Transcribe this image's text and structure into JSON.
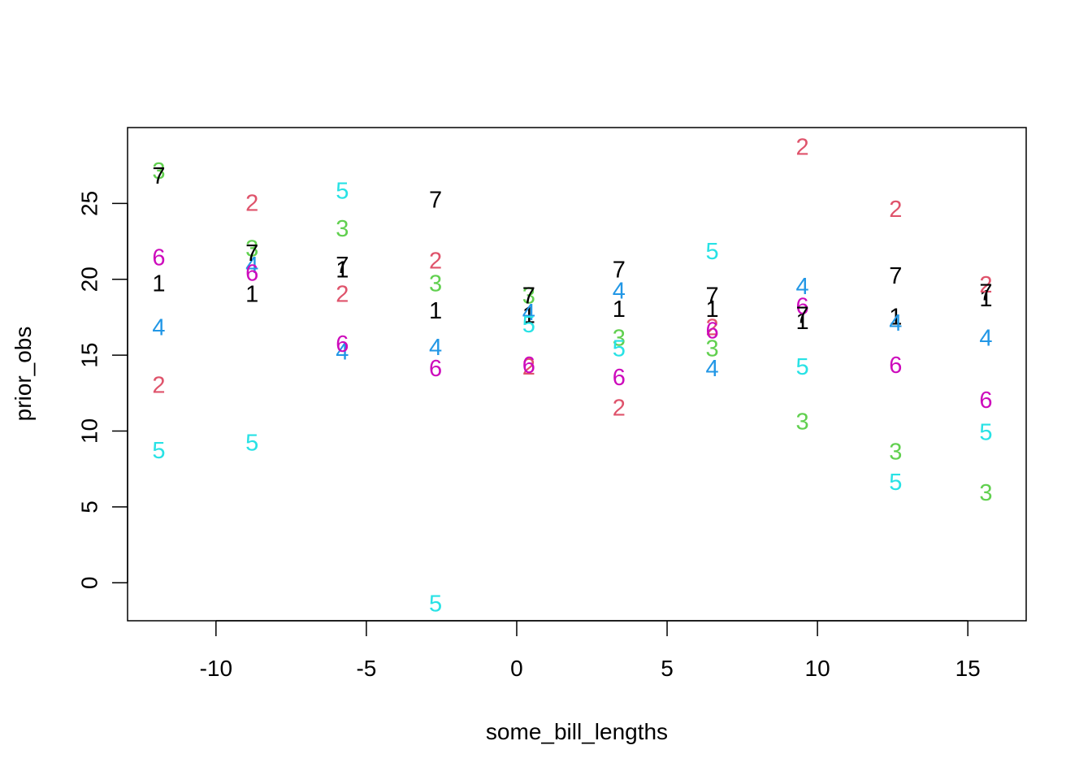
{
  "chart_data": {
    "type": "scatter",
    "title": "",
    "xlabel": "some_bill_lengths",
    "ylabel": "prior_obs",
    "xlim": [
      -12.94,
      16.94
    ],
    "ylim": [
      -2.5,
      30.0
    ],
    "xticks": [
      -10,
      -5,
      0,
      5,
      10,
      15
    ],
    "yticks": [
      0,
      5,
      10,
      15,
      20,
      25
    ],
    "x": [
      -11.9,
      -8.8,
      -5.8,
      -2.7,
      0.4,
      3.4,
      6.5,
      9.5,
      12.6,
      15.6
    ],
    "point_marker": "series index digit",
    "grid": false,
    "legend": "none",
    "series": [
      {
        "symbol": "1",
        "color": "#000000",
        "values": [
          19.7,
          19.0,
          20.6,
          17.9,
          17.6,
          18.0,
          18.0,
          17.2,
          17.5,
          18.7
        ]
      },
      {
        "symbol": "2",
        "color": "#DF536B",
        "values": [
          13.0,
          25.0,
          19.0,
          21.2,
          14.2,
          11.5,
          16.8,
          28.7,
          24.6,
          19.6
        ]
      },
      {
        "symbol": "3",
        "color": "#61D04F",
        "values": [
          27.1,
          22.0,
          23.3,
          19.7,
          18.9,
          16.1,
          15.4,
          10.6,
          8.6,
          5.9
        ]
      },
      {
        "symbol": "4",
        "color": "#2297E6",
        "values": [
          16.8,
          20.9,
          15.2,
          15.5,
          17.8,
          19.2,
          14.1,
          19.5,
          17.1,
          16.1
        ]
      },
      {
        "symbol": "5",
        "color": "#28E2E5",
        "values": [
          8.7,
          9.2,
          25.8,
          -1.4,
          17.0,
          15.4,
          21.8,
          14.2,
          6.6,
          9.9
        ]
      },
      {
        "symbol": "6",
        "color": "#CD0BBC",
        "values": [
          21.4,
          20.4,
          15.7,
          14.1,
          14.3,
          13.5,
          16.6,
          18.2,
          14.3,
          12.0
        ]
      },
      {
        "symbol": "7",
        "color": "#000000",
        "values": [
          26.8,
          21.7,
          20.9,
          25.2,
          18.9,
          20.6,
          18.9,
          17.6,
          20.2,
          19.1
        ]
      }
    ]
  }
}
